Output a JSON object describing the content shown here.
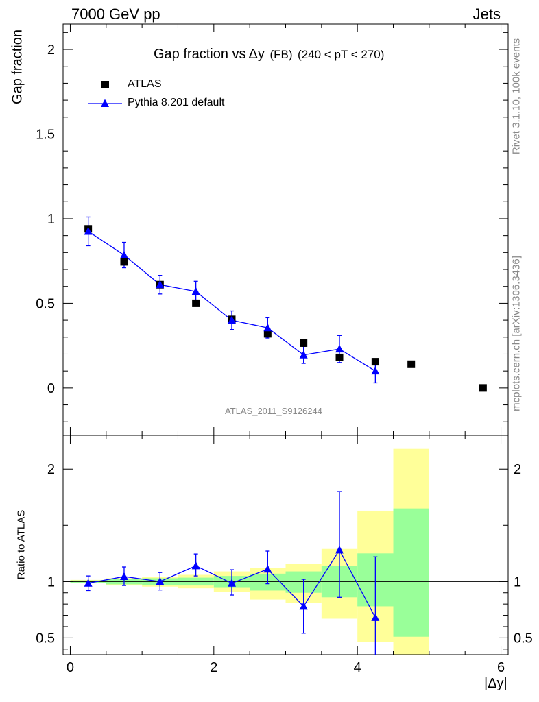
{
  "header": {
    "left": "7000 GeV pp",
    "right": "Jets"
  },
  "side_labels": {
    "rivet": "Rivet 3.1.10,  100k events",
    "mcplots": "mcplots.cern.ch [arXiv:1306.3436]"
  },
  "chart_data": [
    {
      "type": "scatter",
      "title_parts": {
        "a": "Gap fraction vs",
        "b": "Δy",
        "c": "(FB)",
        "d": "(240 < pT < 270)"
      },
      "ylabel": "Gap fraction",
      "xlim": [
        -0.1,
        6.1
      ],
      "ylim": [
        -0.28,
        2.15
      ],
      "yticks": [
        "0",
        "0.5",
        "1",
        "1.5",
        "2"
      ],
      "watermark": "ATLAS_2011_S9126244",
      "series": [
        {
          "name": "ATLAS",
          "color": "#000000",
          "marker": "square",
          "x": [
            0.25,
            0.75,
            1.25,
            1.75,
            2.25,
            2.75,
            3.25,
            3.75,
            4.25,
            4.75,
            5.75
          ],
          "y": [
            0.94,
            0.745,
            0.61,
            0.5,
            0.405,
            0.32,
            0.265,
            0.18,
            0.155,
            0.14,
            0.0
          ]
        },
        {
          "name": "Pythia 8.201 default",
          "color": "#0000ff",
          "marker": "triangle",
          "x": [
            0.25,
            0.75,
            1.25,
            1.75,
            2.25,
            2.75,
            3.25,
            3.75,
            4.25
          ],
          "y": [
            0.925,
            0.785,
            0.61,
            0.57,
            0.4,
            0.355,
            0.195,
            0.23,
            0.1
          ],
          "err": [
            0.085,
            0.075,
            0.055,
            0.06,
            0.055,
            0.06,
            0.05,
            0.08,
            0.07
          ]
        }
      ]
    },
    {
      "type": "scatter",
      "ylabel": "Ratio to ATLAS",
      "xlabel": "|Δy|",
      "xlim": [
        -0.1,
        6.1
      ],
      "ylim": [
        0.35,
        2.3
      ],
      "yticks": [
        "0.5",
        "1",
        "2"
      ],
      "xticks": [
        "0",
        "2",
        "4",
        "6"
      ],
      "bands": {
        "yellow": "#ffff99",
        "green": "#99ff99",
        "bins": [
          {
            "x": [
              0.0,
              0.5
            ],
            "yellow": [
              0.985,
              1.015
            ],
            "green": [
              0.99,
              1.01
            ]
          },
          {
            "x": [
              0.5,
              1.0
            ],
            "yellow": [
              0.965,
              1.03
            ],
            "green": [
              0.975,
              1.02
            ]
          },
          {
            "x": [
              1.0,
              1.5
            ],
            "yellow": [
              0.955,
              1.04
            ],
            "green": [
              0.97,
              1.03
            ]
          },
          {
            "x": [
              1.5,
              2.0
            ],
            "yellow": [
              0.94,
              1.06
            ],
            "green": [
              0.965,
              1.035
            ]
          },
          {
            "x": [
              2.0,
              2.5
            ],
            "yellow": [
              0.91,
              1.09
            ],
            "green": [
              0.95,
              1.05
            ]
          },
          {
            "x": [
              2.5,
              3.0
            ],
            "yellow": [
              0.84,
              1.12
            ],
            "green": [
              0.92,
              1.07
            ]
          },
          {
            "x": [
              3.0,
              3.5
            ],
            "yellow": [
              0.81,
              1.16
            ],
            "green": [
              0.9,
              1.09
            ]
          },
          {
            "x": [
              3.5,
              4.0
            ],
            "yellow": [
              0.67,
              1.29
            ],
            "green": [
              0.86,
              1.14
            ]
          },
          {
            "x": [
              4.0,
              4.5
            ],
            "yellow": [
              0.46,
              1.63
            ],
            "green": [
              0.78,
              1.25
            ]
          },
          {
            "x": [
              4.5,
              5.0
            ],
            "yellow": [
              0.35,
              2.18
            ],
            "green": [
              0.51,
              1.65
            ]
          }
        ]
      },
      "series": [
        {
          "name": "Pythia 8.201 default",
          "color": "#0000ff",
          "x": [
            0.25,
            0.75,
            1.25,
            1.75,
            2.25,
            2.75,
            3.25,
            3.75,
            4.25
          ],
          "y": [
            0.985,
            1.045,
            1.0,
            1.14,
            0.985,
            1.11,
            0.78,
            1.28,
            0.68
          ],
          "err_lo": [
            0.065,
            0.08,
            0.075,
            0.09,
            0.105,
            0.13,
            0.24,
            0.42,
            0.35
          ],
          "err_hi": [
            0.065,
            0.085,
            0.08,
            0.105,
            0.12,
            0.16,
            0.24,
            0.52,
            0.54
          ]
        }
      ]
    }
  ]
}
